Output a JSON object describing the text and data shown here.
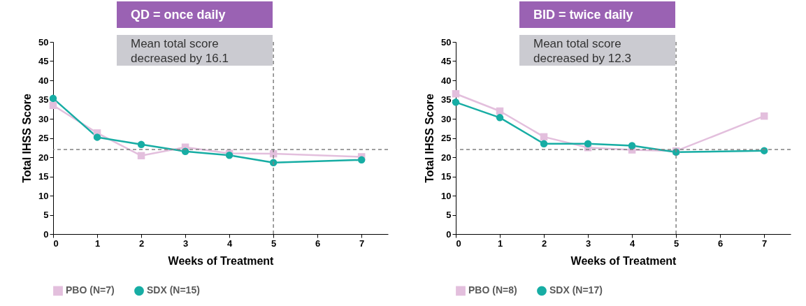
{
  "chart_data": [
    {
      "type": "line",
      "title": "QD = once daily",
      "annotations": [
        "Mean total score decreased by 16.1"
      ],
      "xlabel": "Weeks of Treatment",
      "ylabel": "Total IHSS Score",
      "x": [
        0,
        1,
        2,
        3,
        4,
        5,
        7
      ],
      "xlim": [
        0,
        7.6
      ],
      "xticks": [
        0,
        1,
        2,
        3,
        4,
        5,
        6,
        7
      ],
      "ylim": [
        0,
        50
      ],
      "yticks": [
        0,
        5,
        10,
        15,
        20,
        25,
        30,
        35,
        40,
        45,
        50
      ],
      "grid": false,
      "legend": "bottom",
      "series": [
        {
          "name": "PBO (N=7)",
          "color": "#e3bfdd",
          "marker": "square",
          "values": [
            33.5,
            26.3,
            20.4,
            22.6,
            21.0,
            20.9,
            20.1
          ]
        },
        {
          "name": "SDX (N=15)",
          "color": "#17ada4",
          "marker": "circle",
          "values": [
            35.3,
            25.2,
            23.3,
            21.5,
            20.5,
            18.6,
            19.3
          ]
        }
      ],
      "ref_lines": [
        {
          "axis": "y",
          "value": 22,
          "color": "#808080",
          "line_style": "dashed"
        },
        {
          "axis": "x",
          "value": 5,
          "color": "#808080",
          "line_style": "dashed"
        }
      ]
    },
    {
      "type": "line",
      "title": "BID = twice daily",
      "annotations": [
        "Mean total score decreased by 12.3"
      ],
      "xlabel": "Weeks of Treatment",
      "ylabel": "Total IHSS Score",
      "x": [
        0,
        1,
        2,
        3,
        4,
        5,
        7
      ],
      "xlim": [
        0,
        7.6
      ],
      "xticks": [
        0,
        1,
        2,
        3,
        4,
        5,
        6,
        7
      ],
      "ylim": [
        0,
        50
      ],
      "yticks": [
        0,
        5,
        10,
        15,
        20,
        25,
        30,
        35,
        40,
        45,
        50
      ],
      "grid": false,
      "legend": "bottom",
      "series": [
        {
          "name": "PBO (N=8)",
          "color": "#e3bfdd",
          "marker": "square",
          "values": [
            36.5,
            32.0,
            25.3,
            22.5,
            21.9,
            21.6,
            30.7
          ]
        },
        {
          "name": "SDX (N=17)",
          "color": "#17ada4",
          "marker": "circle",
          "values": [
            34.3,
            30.3,
            23.5,
            23.5,
            23.0,
            21.3,
            21.7
          ]
        }
      ],
      "ref_lines": [
        {
          "axis": "y",
          "value": 22,
          "color": "#808080",
          "line_style": "dashed"
        },
        {
          "axis": "x",
          "value": 5,
          "color": "#808080",
          "line_style": "dashed"
        }
      ]
    }
  ]
}
